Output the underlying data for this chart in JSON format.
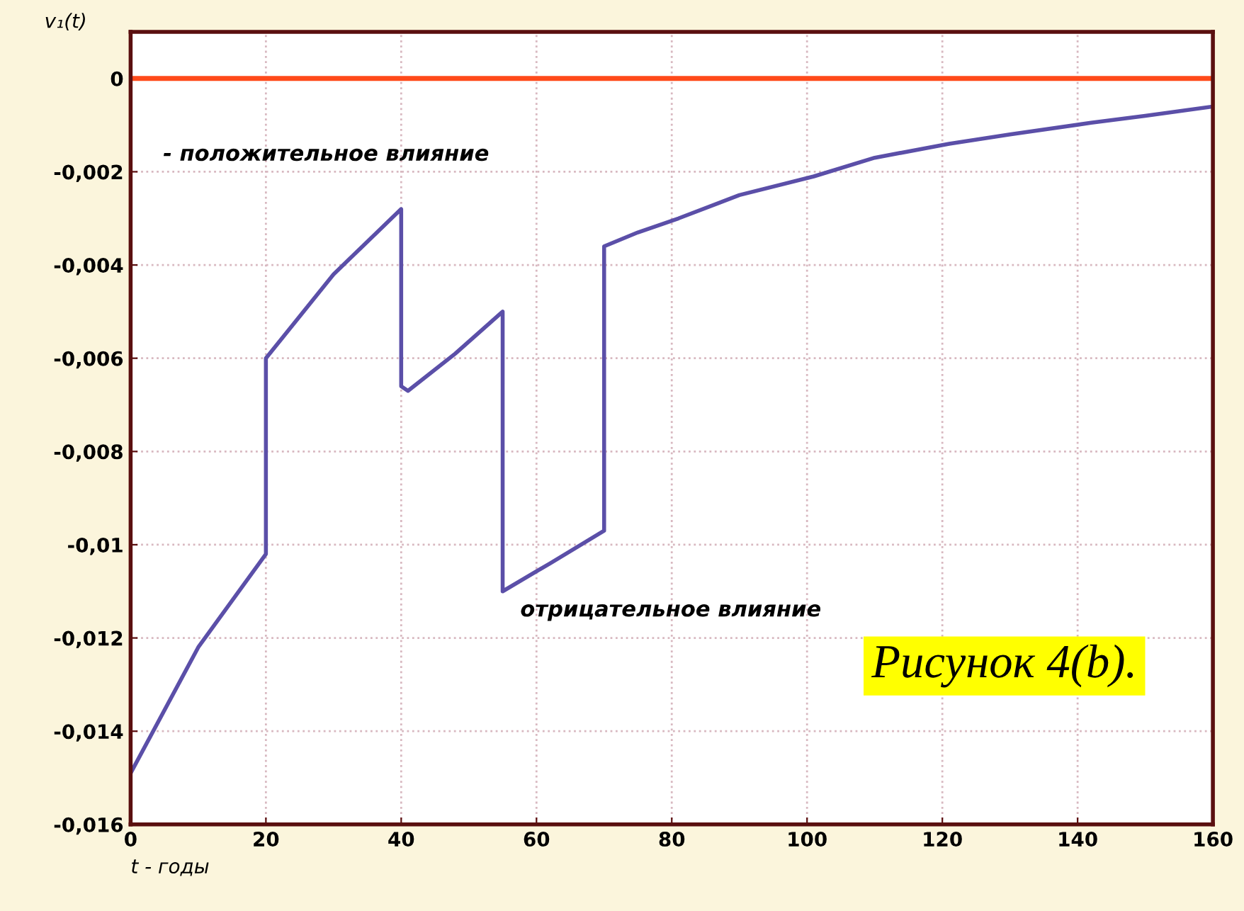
{
  "chart_data": {
    "type": "line",
    "ylabel": "v₁(t)",
    "xlabel": "t - годы",
    "series": [
      {
        "color": "#5b4fa8",
        "x": [
          0,
          10,
          20,
          20,
          30,
          40,
          40,
          41,
          48,
          55,
          55,
          62,
          70,
          70,
          75,
          81,
          90,
          101,
          110,
          121,
          130,
          142,
          150,
          160
        ],
        "values": [
          -0.0149,
          -0.0122,
          -0.0102,
          -0.006,
          -0.0042,
          -0.0028,
          -0.0066,
          -0.0067,
          -0.0059,
          -0.005,
          -0.011,
          -0.0104,
          -0.0097,
          -0.0036,
          -0.0033,
          -0.003,
          -0.0025,
          -0.0021,
          -0.0017,
          -0.0014,
          -0.0012,
          -0.00095,
          -0.0008,
          -0.0006
        ]
      }
    ],
    "ref_lines": [
      {
        "axis": "y",
        "value": 0,
        "color": "#ff4a1a"
      }
    ],
    "annotations": [
      "- положительное влияние",
      "отрицательное влияние",
      "Рисунок 4(b)."
    ],
    "xlim": [
      0,
      160
    ],
    "xticks": [
      0,
      20,
      40,
      60,
      80,
      100,
      120,
      140,
      160
    ],
    "ylim": [
      -0.016,
      0.001
    ],
    "yticks": [
      {
        "value": 0,
        "label": "0"
      },
      {
        "value": -0.002,
        "label": "-0,002"
      },
      {
        "value": -0.004,
        "label": "-0,004"
      },
      {
        "value": -0.006,
        "label": "-0,006"
      },
      {
        "value": -0.008,
        "label": "-0,008"
      },
      {
        "value": -0.01,
        "label": "-0,01"
      },
      {
        "value": -0.012,
        "label": "-0,012"
      },
      {
        "value": -0.014,
        "label": "-0,014"
      },
      {
        "value": -0.016,
        "label": "-0,016"
      }
    ],
    "grid": true,
    "legend": false,
    "marker": "none",
    "line_style": "solid"
  }
}
